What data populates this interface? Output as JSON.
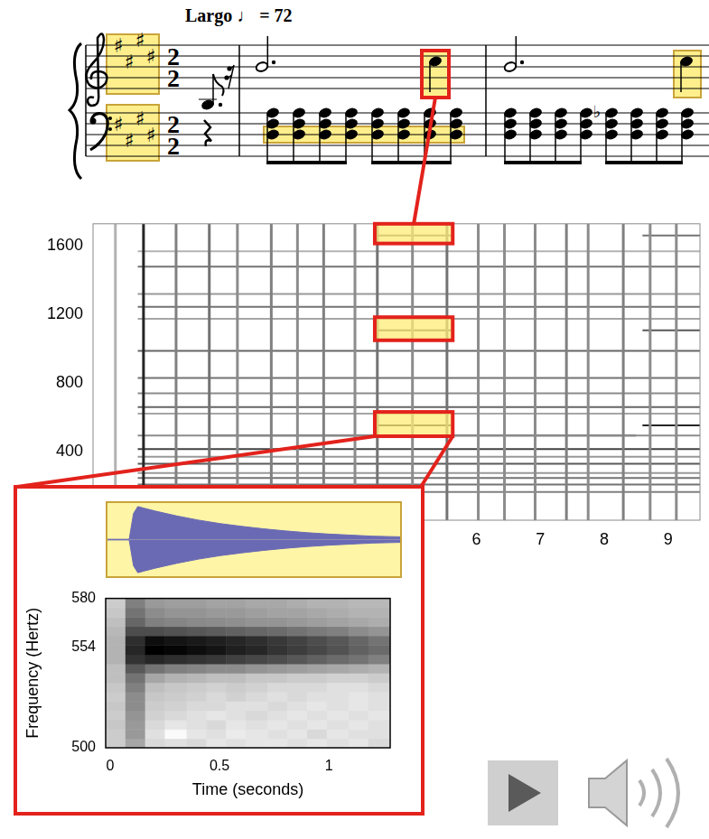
{
  "score": {
    "tempo": "Largo ♩ = 72",
    "time_signature": [
      2,
      2
    ],
    "key_signature": {
      "symbol": "♯",
      "count": 4
    },
    "accidental": "♭"
  },
  "chart_data": [
    {
      "type": "spectrogram",
      "xlim": [
        0,
        9.5
      ],
      "ylim": [
        0,
        1730
      ],
      "xticks": [
        6,
        7,
        8,
        9
      ],
      "yticks": [
        400,
        800,
        1200,
        1600
      ],
      "grid": false,
      "partials": [
        {
          "frequency": 165,
          "start": 0.7,
          "end": 9.5,
          "level": 0.5
        },
        {
          "frequency": 208,
          "start": 0.7,
          "end": 9.5,
          "level": 0.55
        },
        {
          "frequency": 247,
          "start": 0.7,
          "end": 9.5,
          "level": 0.55
        },
        {
          "frequency": 275,
          "start": 0.7,
          "end": 9.5,
          "level": 0.4
        },
        {
          "frequency": 330,
          "start": 0.7,
          "end": 9.5,
          "level": 0.65
        },
        {
          "frequency": 370,
          "start": 0.7,
          "end": 9.5,
          "level": 0.4
        },
        {
          "frequency": 415,
          "start": 0.7,
          "end": 9.5,
          "level": 0.75
        },
        {
          "frequency": 494,
          "start": 0.7,
          "end": 9.5,
          "level": 0.45
        },
        {
          "frequency": 494,
          "start": 1.8,
          "end": 4.4,
          "level": 0.8
        },
        {
          "frequency": 494,
          "start": 5.6,
          "end": 8.5,
          "level": 0.75
        },
        {
          "frequency": 554,
          "start": 4.4,
          "end": 5.6,
          "level": 0.85
        },
        {
          "frequency": 554,
          "start": 8.6,
          "end": 9.5,
          "level": 0.85
        },
        {
          "frequency": 622,
          "start": 0.7,
          "end": 9.5,
          "level": 0.35
        },
        {
          "frequency": 660,
          "start": 0.7,
          "end": 9.5,
          "level": 0.6
        },
        {
          "frequency": 740,
          "start": 0.7,
          "end": 9.5,
          "level": 0.45
        },
        {
          "frequency": 830,
          "start": 0.7,
          "end": 9.5,
          "level": 0.55
        },
        {
          "frequency": 988,
          "start": 0.7,
          "end": 9.5,
          "level": 0.6
        },
        {
          "frequency": 1108,
          "start": 4.4,
          "end": 5.6,
          "level": 0.7
        },
        {
          "frequency": 1108,
          "start": 8.6,
          "end": 9.5,
          "level": 0.65
        },
        {
          "frequency": 1175,
          "start": 0.7,
          "end": 9.5,
          "level": 0.35
        },
        {
          "frequency": 1245,
          "start": 0.7,
          "end": 9.5,
          "level": 0.55
        },
        {
          "frequency": 1320,
          "start": 0.7,
          "end": 9.5,
          "level": 0.4
        },
        {
          "frequency": 1480,
          "start": 0.7,
          "end": 9.5,
          "level": 0.55
        },
        {
          "frequency": 1570,
          "start": 0.7,
          "end": 9.5,
          "level": 0.3
        },
        {
          "frequency": 1662,
          "start": 4.4,
          "end": 5.6,
          "level": 0.6
        },
        {
          "frequency": 1662,
          "start": 8.6,
          "end": 9.5,
          "level": 0.55
        }
      ],
      "onsets": [
        {
          "time": 0.35,
          "level": 0.3
        },
        {
          "time": 0.79,
          "level": 0.85
        },
        {
          "time": 1.3,
          "level": 0.5
        },
        {
          "time": 1.82,
          "level": 0.55
        },
        {
          "time": 2.26,
          "level": 0.45
        },
        {
          "time": 2.79,
          "level": 0.5
        },
        {
          "time": 3.2,
          "level": 0.45
        },
        {
          "time": 3.61,
          "level": 0.5
        },
        {
          "time": 4.1,
          "level": 0.45
        },
        {
          "time": 4.45,
          "level": 0.55
        },
        {
          "time": 5.0,
          "level": 0.45
        },
        {
          "time": 5.54,
          "level": 0.55
        },
        {
          "time": 6.03,
          "level": 0.45
        },
        {
          "time": 6.44,
          "level": 0.45
        },
        {
          "time": 6.92,
          "level": 0.45
        },
        {
          "time": 7.41,
          "level": 0.5
        },
        {
          "time": 7.75,
          "level": 0.45
        },
        {
          "time": 8.3,
          "level": 0.5
        },
        {
          "time": 8.72,
          "level": 0.45
        },
        {
          "time": 9.13,
          "level": 0.45
        }
      ],
      "highlights": [
        {
          "x": [
            4.41,
            5.63
          ],
          "y": [
            1615,
            1730
          ]
        },
        {
          "x": [
            4.41,
            5.63
          ],
          "y": [
            1050,
            1185
          ]
        },
        {
          "x": [
            4.41,
            5.63
          ],
          "y": [
            490,
            632
          ]
        }
      ]
    },
    {
      "type": "area",
      "x": [
        -0.02,
        0.08,
        0.1,
        0.12,
        0.15,
        0.2,
        0.3,
        0.4,
        0.5,
        0.6,
        0.7,
        0.8,
        0.9,
        1.0,
        1.1,
        1.2,
        1.33
      ],
      "series": [
        {
          "values": [
            0.01,
            0.01,
            0.75,
            0.95,
            0.9,
            0.82,
            0.68,
            0.56,
            0.46,
            0.38,
            0.31,
            0.25,
            0.2,
            0.16,
            0.13,
            0.1,
            0.08
          ]
        },
        {
          "values": [
            -0.01,
            -0.01,
            -0.75,
            -0.95,
            -0.9,
            -0.82,
            -0.68,
            -0.56,
            -0.46,
            -0.38,
            -0.31,
            -0.25,
            -0.2,
            -0.16,
            -0.13,
            -0.1,
            -0.08
          ]
        }
      ],
      "xlim": [
        -0.02,
        1.33
      ],
      "ylim": [
        -1.05,
        1.05
      ],
      "tick_labels": false,
      "color": "#6a6ab4"
    },
    {
      "type": "heatmap",
      "x_label": "Time (seconds)",
      "y_label": "Frequency (Hertz)",
      "xlim": [
        -0.02,
        1.28
      ],
      "ylim": [
        500,
        580
      ],
      "xticks": [
        0,
        0.5,
        1
      ],
      "yticks": [
        500,
        554,
        580
      ],
      "grid": false,
      "x_edges": [
        -0.02,
        0.07,
        0.16,
        0.25,
        0.35,
        0.44,
        0.53,
        0.62,
        0.72,
        0.81,
        0.9,
        0.99,
        1.09,
        1.18,
        1.28
      ],
      "y_edges": [
        500,
        505,
        510,
        515,
        520,
        525,
        530,
        535,
        540,
        545,
        550,
        555,
        560,
        565,
        570,
        575,
        580
      ],
      "cells": [
        [
          0.2,
          0.35,
          0.15,
          0.12,
          0.15,
          0.1,
          0.12,
          0.1,
          0.1,
          0.12,
          0.1,
          0.12,
          0.1,
          0.15
        ],
        [
          0.2,
          0.4,
          0.12,
          0.02,
          0.1,
          0.12,
          0.08,
          0.1,
          0.12,
          0.1,
          0.15,
          0.1,
          0.12,
          0.12
        ],
        [
          0.22,
          0.4,
          0.15,
          0.1,
          0.12,
          0.15,
          0.1,
          0.12,
          0.1,
          0.12,
          0.1,
          0.12,
          0.1,
          0.12
        ],
        [
          0.2,
          0.42,
          0.18,
          0.15,
          0.12,
          0.1,
          0.12,
          0.15,
          0.12,
          0.1,
          0.12,
          0.1,
          0.12,
          0.1
        ],
        [
          0.22,
          0.45,
          0.2,
          0.18,
          0.15,
          0.15,
          0.12,
          0.12,
          0.15,
          0.12,
          0.1,
          0.12,
          0.1,
          0.12
        ],
        [
          0.2,
          0.45,
          0.22,
          0.2,
          0.18,
          0.15,
          0.18,
          0.15,
          0.12,
          0.15,
          0.12,
          0.12,
          0.1,
          0.12
        ],
        [
          0.22,
          0.5,
          0.25,
          0.22,
          0.2,
          0.18,
          0.2,
          0.18,
          0.15,
          0.15,
          0.15,
          0.12,
          0.12,
          0.15
        ],
        [
          0.25,
          0.55,
          0.35,
          0.3,
          0.28,
          0.25,
          0.25,
          0.22,
          0.22,
          0.2,
          0.2,
          0.18,
          0.18,
          0.2
        ],
        [
          0.25,
          0.65,
          0.55,
          0.5,
          0.48,
          0.45,
          0.45,
          0.42,
          0.4,
          0.38,
          0.36,
          0.34,
          0.32,
          0.3
        ],
        [
          0.3,
          0.8,
          0.85,
          0.82,
          0.8,
          0.78,
          0.75,
          0.72,
          0.7,
          0.66,
          0.62,
          0.58,
          0.55,
          0.5
        ],
        [
          0.3,
          0.85,
          1.0,
          0.98,
          0.95,
          0.92,
          0.88,
          0.85,
          0.8,
          0.76,
          0.72,
          0.68,
          0.62,
          0.58
        ],
        [
          0.3,
          0.82,
          0.95,
          0.92,
          0.9,
          0.88,
          0.85,
          0.82,
          0.78,
          0.74,
          0.7,
          0.66,
          0.6,
          0.55
        ],
        [
          0.28,
          0.7,
          0.7,
          0.68,
          0.66,
          0.64,
          0.62,
          0.6,
          0.58,
          0.55,
          0.52,
          0.5,
          0.45,
          0.42
        ],
        [
          0.25,
          0.6,
          0.5,
          0.48,
          0.46,
          0.45,
          0.44,
          0.42,
          0.42,
          0.4,
          0.38,
          0.36,
          0.34,
          0.32
        ],
        [
          0.22,
          0.55,
          0.45,
          0.42,
          0.42,
          0.4,
          0.4,
          0.38,
          0.36,
          0.36,
          0.34,
          0.32,
          0.3,
          0.3
        ],
        [
          0.2,
          0.5,
          0.4,
          0.38,
          0.38,
          0.36,
          0.36,
          0.34,
          0.34,
          0.32,
          0.3,
          0.3,
          0.28,
          0.28
        ]
      ]
    }
  ]
}
